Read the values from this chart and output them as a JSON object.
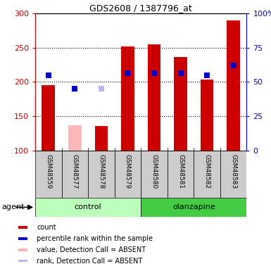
{
  "title": "GDS2608 / 1387796_at",
  "samples": [
    "GSM48559",
    "GSM48577",
    "GSM48578",
    "GSM48579",
    "GSM48580",
    "GSM48581",
    "GSM48582",
    "GSM48583"
  ],
  "count_values": [
    195,
    137,
    136,
    252,
    255,
    236,
    203,
    290
  ],
  "count_absent": [
    false,
    true,
    false,
    false,
    false,
    false,
    false,
    false
  ],
  "rank_values": [
    210,
    190,
    190,
    213,
    213,
    213,
    210,
    224
  ],
  "rank_absent": [
    false,
    false,
    true,
    false,
    false,
    false,
    false,
    false
  ],
  "ylim_left": [
    100,
    300
  ],
  "yticks_left": [
    100,
    150,
    200,
    250,
    300
  ],
  "ytick_labels_left": [
    "100",
    "150",
    "200",
    "250",
    "300"
  ],
  "yticks_right": [
    0,
    25,
    50,
    75,
    100
  ],
  "ytick_labels_right": [
    "0",
    "25",
    "50",
    "75",
    "100%"
  ],
  "color_red": "#cc0000",
  "color_pink": "#ffb8b8",
  "color_blue": "#0000cc",
  "color_lightblue": "#b8b8ee",
  "color_control_bg": "#bbffbb",
  "color_olanzapine_bg": "#44cc44",
  "color_sample_bg": "#cccccc",
  "bar_width": 0.5,
  "legend_items": [
    {
      "color": "#cc0000",
      "label": "count"
    },
    {
      "color": "#0000cc",
      "label": "percentile rank within the sample"
    },
    {
      "color": "#ffb8b8",
      "label": "value, Detection Call = ABSENT"
    },
    {
      "color": "#b8b8ee",
      "label": "rank, Detection Call = ABSENT"
    }
  ]
}
